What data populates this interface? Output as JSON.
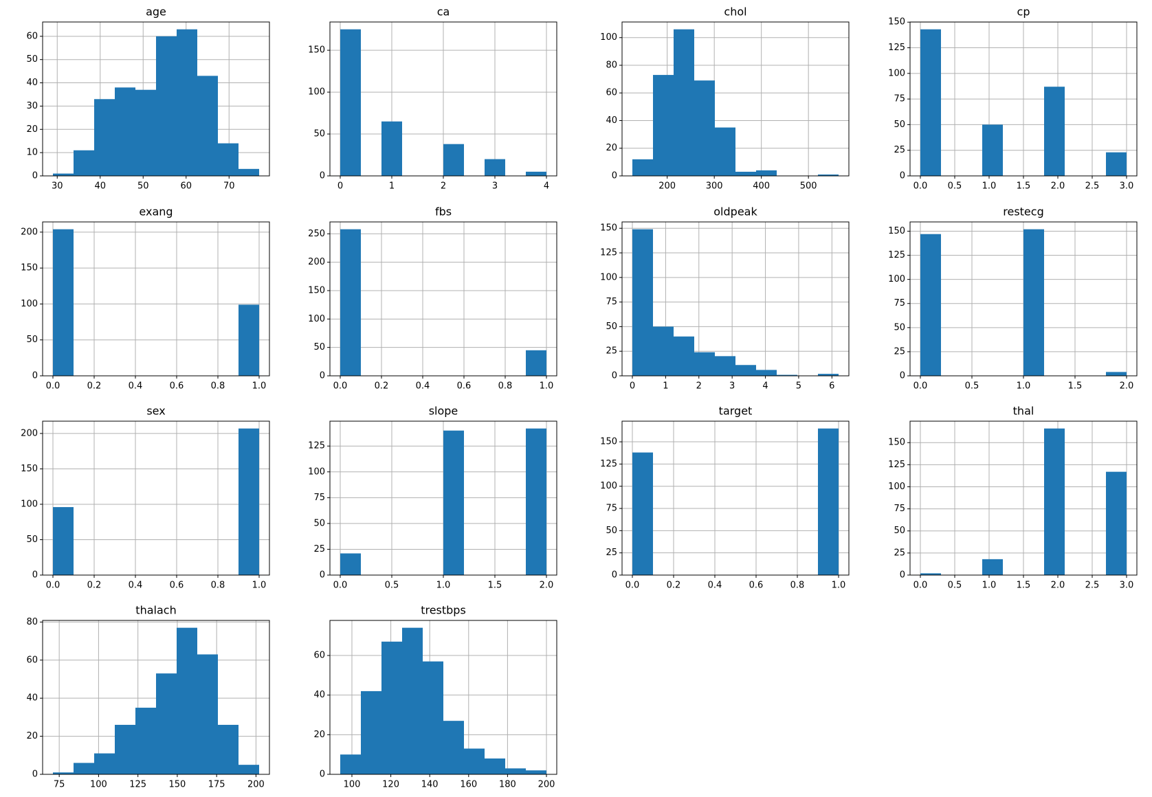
{
  "chart_data": [
    {
      "type": "histogram",
      "title": "age",
      "color": "#1f77b4",
      "grid": true,
      "bins": [
        29,
        33.8,
        38.6,
        43.4,
        48.2,
        53,
        57.8,
        62.6,
        67.4,
        72.2,
        77
      ],
      "values": [
        1,
        11,
        33,
        38,
        37,
        60,
        63,
        43,
        14,
        3
      ],
      "xlim": [
        26.6,
        79.4
      ],
      "xticks": [
        30,
        40,
        50,
        60,
        70
      ],
      "ylim": [
        0,
        66.15
      ],
      "yticks": [
        0,
        10,
        20,
        30,
        40,
        50,
        60
      ]
    },
    {
      "type": "histogram",
      "title": "ca",
      "color": "#1f77b4",
      "grid": true,
      "bins": [
        0,
        0.4,
        0.8,
        1.2,
        1.6,
        2,
        2.4,
        2.8,
        3.2,
        3.6,
        4
      ],
      "values": [
        175,
        0,
        65,
        0,
        0,
        38,
        0,
        20,
        0,
        5
      ],
      "xlim": [
        -0.2,
        4.2
      ],
      "xticks": [
        0,
        1,
        2,
        3,
        4
      ],
      "ylim": [
        0,
        183.75
      ],
      "yticks": [
        0,
        50,
        100,
        150
      ]
    },
    {
      "type": "histogram",
      "title": "chol",
      "color": "#1f77b4",
      "grid": true,
      "bins": [
        126,
        169.8,
        213.6,
        257.4,
        301.2,
        345,
        388.8,
        432.6,
        476.4,
        520.2,
        564
      ],
      "values": [
        12,
        73,
        106,
        69,
        35,
        3,
        4,
        0,
        0,
        1
      ],
      "xlim": [
        104.1,
        585.9
      ],
      "xticks": [
        200,
        300,
        400,
        500
      ],
      "ylim": [
        0,
        111.3
      ],
      "yticks": [
        0,
        20,
        40,
        60,
        80,
        100
      ]
    },
    {
      "type": "histogram",
      "title": "cp",
      "color": "#1f77b4",
      "grid": true,
      "bins": [
        0,
        0.3,
        0.6,
        0.9,
        1.2,
        1.5,
        1.8,
        2.1,
        2.4,
        2.7,
        3
      ],
      "values": [
        143,
        0,
        0,
        50,
        0,
        0,
        87,
        0,
        0,
        23
      ],
      "xlim": [
        -0.15,
        3.15
      ],
      "xticks": [
        {
          "value": 0,
          "label": "0.0"
        },
        0.5,
        {
          "value": 1,
          "label": "1.0"
        },
        1.5,
        {
          "value": 2,
          "label": "2.0"
        },
        2.5,
        {
          "value": 3,
          "label": "3.0"
        }
      ],
      "ylim": [
        0,
        150.15
      ],
      "yticks": [
        0,
        25,
        50,
        75,
        100,
        125,
        150
      ]
    },
    {
      "type": "histogram",
      "title": "exang",
      "color": "#1f77b4",
      "grid": true,
      "bins": [
        0,
        0.1,
        0.2,
        0.3,
        0.4,
        0.5,
        0.6,
        0.7,
        0.8,
        0.9,
        1
      ],
      "values": [
        204,
        0,
        0,
        0,
        0,
        0,
        0,
        0,
        0,
        99
      ],
      "xlim": [
        -0.05,
        1.05
      ],
      "xticks": [
        {
          "value": 0,
          "label": "0.0"
        },
        0.2,
        0.4,
        0.6,
        0.8,
        {
          "value": 1,
          "label": "1.0"
        }
      ],
      "ylim": [
        0,
        214.2
      ],
      "yticks": [
        0,
        50,
        100,
        150,
        200
      ]
    },
    {
      "type": "histogram",
      "title": "fbs",
      "color": "#1f77b4",
      "grid": true,
      "bins": [
        0,
        0.1,
        0.2,
        0.3,
        0.4,
        0.5,
        0.6,
        0.7,
        0.8,
        0.9,
        1
      ],
      "values": [
        258,
        0,
        0,
        0,
        0,
        0,
        0,
        0,
        0,
        45
      ],
      "xlim": [
        -0.05,
        1.05
      ],
      "xticks": [
        {
          "value": 0,
          "label": "0.0"
        },
        0.2,
        0.4,
        0.6,
        0.8,
        {
          "value": 1,
          "label": "1.0"
        }
      ],
      "ylim": [
        0,
        270.9
      ],
      "yticks": [
        0,
        50,
        100,
        150,
        200,
        250
      ]
    },
    {
      "type": "histogram",
      "title": "oldpeak",
      "color": "#1f77b4",
      "grid": true,
      "bins": [
        0,
        0.62,
        1.24,
        1.86,
        2.48,
        3.1,
        3.72,
        4.34,
        4.96,
        5.58,
        6.2
      ],
      "values": [
        149,
        50,
        40,
        24,
        20,
        11,
        6,
        1,
        0,
        2
      ],
      "xlim": [
        -0.31,
        6.51
      ],
      "xticks": [
        0,
        1,
        2,
        3,
        4,
        5,
        6
      ],
      "ylim": [
        0,
        156.45
      ],
      "yticks": [
        0,
        25,
        50,
        75,
        100,
        125,
        150
      ]
    },
    {
      "type": "histogram",
      "title": "restecg",
      "color": "#1f77b4",
      "grid": true,
      "bins": [
        0,
        0.2,
        0.4,
        0.6,
        0.8,
        1,
        1.2,
        1.4,
        1.6,
        1.8,
        2
      ],
      "values": [
        147,
        0,
        0,
        0,
        0,
        152,
        0,
        0,
        0,
        4
      ],
      "xlim": [
        -0.1,
        2.1
      ],
      "xticks": [
        {
          "value": 0,
          "label": "0.0"
        },
        0.5,
        {
          "value": 1,
          "label": "1.0"
        },
        1.5,
        {
          "value": 2,
          "label": "2.0"
        }
      ],
      "ylim": [
        0,
        159.6
      ],
      "yticks": [
        0,
        25,
        50,
        75,
        100,
        125,
        150
      ]
    },
    {
      "type": "histogram",
      "title": "sex",
      "color": "#1f77b4",
      "grid": true,
      "bins": [
        0,
        0.1,
        0.2,
        0.3,
        0.4,
        0.5,
        0.6,
        0.7,
        0.8,
        0.9,
        1
      ],
      "values": [
        96,
        0,
        0,
        0,
        0,
        0,
        0,
        0,
        0,
        207
      ],
      "xlim": [
        -0.05,
        1.05
      ],
      "xticks": [
        {
          "value": 0,
          "label": "0.0"
        },
        0.2,
        0.4,
        0.6,
        0.8,
        {
          "value": 1,
          "label": "1.0"
        }
      ],
      "ylim": [
        0,
        217.35
      ],
      "yticks": [
        0,
        50,
        100,
        150,
        200
      ]
    },
    {
      "type": "histogram",
      "title": "slope",
      "color": "#1f77b4",
      "grid": true,
      "bins": [
        0,
        0.2,
        0.4,
        0.6,
        0.8,
        1,
        1.2,
        1.4,
        1.6,
        1.8,
        2
      ],
      "values": [
        21,
        0,
        0,
        0,
        0,
        140,
        0,
        0,
        0,
        142
      ],
      "xlim": [
        -0.1,
        2.1
      ],
      "xticks": [
        {
          "value": 0,
          "label": "0.0"
        },
        0.5,
        {
          "value": 1,
          "label": "1.0"
        },
        1.5,
        {
          "value": 2,
          "label": "2.0"
        }
      ],
      "ylim": [
        0,
        149.1
      ],
      "yticks": [
        0,
        25,
        50,
        75,
        100,
        125
      ]
    },
    {
      "type": "histogram",
      "title": "target",
      "color": "#1f77b4",
      "grid": true,
      "bins": [
        0,
        0.1,
        0.2,
        0.3,
        0.4,
        0.5,
        0.6,
        0.7,
        0.8,
        0.9,
        1
      ],
      "values": [
        138,
        0,
        0,
        0,
        0,
        0,
        0,
        0,
        0,
        165
      ],
      "xlim": [
        -0.05,
        1.05
      ],
      "xticks": [
        {
          "value": 0,
          "label": "0.0"
        },
        0.2,
        0.4,
        0.6,
        0.8,
        {
          "value": 1,
          "label": "1.0"
        }
      ],
      "ylim": [
        0,
        173.25
      ],
      "yticks": [
        0,
        25,
        50,
        75,
        100,
        125,
        150
      ]
    },
    {
      "type": "histogram",
      "title": "thal",
      "color": "#1f77b4",
      "grid": true,
      "bins": [
        0,
        0.3,
        0.6,
        0.9,
        1.2,
        1.5,
        1.8,
        2.1,
        2.4,
        2.7,
        3
      ],
      "values": [
        2,
        0,
        0,
        18,
        0,
        0,
        166,
        0,
        0,
        117
      ],
      "xlim": [
        -0.15,
        3.15
      ],
      "xticks": [
        {
          "value": 0,
          "label": "0.0"
        },
        0.5,
        {
          "value": 1,
          "label": "1.0"
        },
        1.5,
        {
          "value": 2,
          "label": "2.0"
        },
        2.5,
        {
          "value": 3,
          "label": "3.0"
        }
      ],
      "ylim": [
        0,
        174.3
      ],
      "yticks": [
        0,
        25,
        50,
        75,
        100,
        125,
        150
      ]
    },
    {
      "type": "histogram",
      "title": "thalach",
      "color": "#1f77b4",
      "grid": true,
      "bins": [
        71,
        84.1,
        97.2,
        110.3,
        123.4,
        136.5,
        149.6,
        162.7,
        175.8,
        188.9,
        202
      ],
      "values": [
        1,
        6,
        11,
        26,
        35,
        53,
        77,
        63,
        26,
        5
      ],
      "xlim": [
        64.45,
        208.55
      ],
      "xticks": [
        75,
        100,
        125,
        150,
        175,
        200
      ],
      "ylim": [
        0,
        80.85
      ],
      "yticks": [
        0,
        20,
        40,
        60,
        80
      ]
    },
    {
      "type": "histogram",
      "title": "trestbps",
      "color": "#1f77b4",
      "grid": true,
      "bins": [
        94,
        104.6,
        115.2,
        125.8,
        136.4,
        147,
        157.6,
        168.2,
        178.8,
        189.4,
        200
      ],
      "values": [
        10,
        42,
        67,
        74,
        57,
        27,
        13,
        8,
        3,
        2
      ],
      "xlim": [
        88.7,
        205.3
      ],
      "xticks": [
        100,
        120,
        140,
        160,
        180,
        200
      ],
      "ylim": [
        0,
        77.7
      ],
      "yticks": [
        0,
        20,
        40,
        60
      ]
    }
  ]
}
